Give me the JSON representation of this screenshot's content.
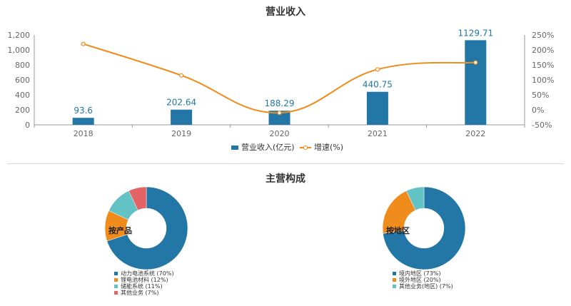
{
  "charts_title": "营业收入",
  "section2_title": "主营构成",
  "colors": {
    "bar": "#2277a6",
    "line": "#f08c1c",
    "axis": "#999999",
    "text": "#666666",
    "label": "#2277a6"
  },
  "chart_data": [
    {
      "type": "bar",
      "title": "营业收入",
      "categories": [
        "2018",
        "2019",
        "2020",
        "2021",
        "2022"
      ],
      "series": [
        {
          "name": "营业收入(亿元)",
          "type": "bar",
          "axis": "left",
          "values": [
            93.6,
            202.64,
            188.29,
            440.75,
            1129.71
          ],
          "labels": [
            "93.6",
            "202.64",
            "188.29",
            "440.75",
            "1129.71"
          ]
        },
        {
          "name": "增速(%)",
          "type": "line",
          "axis": "right",
          "values": [
            220,
            115,
            -10,
            135,
            158
          ]
        }
      ],
      "ylim_left": [
        0,
        1200
      ],
      "yticks_left": [
        "0",
        "200",
        "400",
        "600",
        "800",
        "1,000",
        "1,200"
      ],
      "ylim_right": [
        -50,
        250
      ],
      "yticks_right": [
        "-50%",
        "0%",
        "50%",
        "100%",
        "150%",
        "200%",
        "250%"
      ],
      "legend_position": "bottom"
    },
    {
      "type": "pie",
      "center_label": "按产品",
      "slices": [
        {
          "label": "动力电池系统 (70%)",
          "value": 70,
          "color": "#2277a6"
        },
        {
          "label": "锂电池材料 (12%)",
          "value": 12,
          "color": "#f08c1c"
        },
        {
          "label": "储能系统 (11%)",
          "value": 11,
          "color": "#63c2c4"
        },
        {
          "label": "其他业务 (7%)",
          "value": 7,
          "color": "#e46465"
        }
      ]
    },
    {
      "type": "pie",
      "center_label": "按地区",
      "slices": [
        {
          "label": "境内地区 (73%)",
          "value": 73,
          "color": "#2277a6"
        },
        {
          "label": "境外地区 (20%)",
          "value": 20,
          "color": "#f08c1c"
        },
        {
          "label": "其他业务(地区) (7%)",
          "value": 7,
          "color": "#63c2c4"
        }
      ]
    }
  ]
}
